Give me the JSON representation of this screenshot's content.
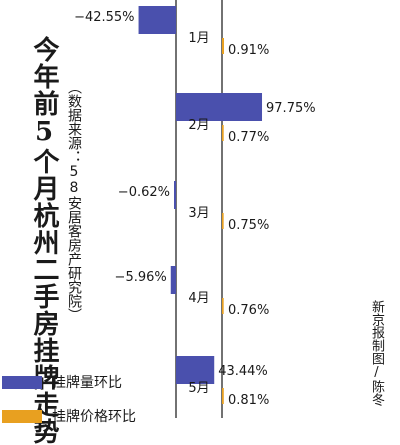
{
  "title": "今年前5个月杭州二手房挂牌走势",
  "source": "（数据来源：58安居客房产研究院）",
  "credit": "新京报制图/陈冬",
  "colors": {
    "volume": "#4a50ad",
    "price": "#e8a020",
    "axis": "#444444"
  },
  "chart_data": {
    "type": "bar",
    "categories": [
      "1月",
      "2月",
      "3月",
      "4月",
      "5月"
    ],
    "series": [
      {
        "name": "挂牌量环比",
        "values": [
          -42.55,
          97.75,
          -0.62,
          -5.96,
          43.44
        ],
        "labels": [
          "−42.55%",
          "97.75%",
          "−0.62%",
          "−5.96%",
          "43.44%"
        ]
      },
      {
        "name": "挂牌价格环比",
        "values": [
          0.91,
          0.77,
          0.75,
          0.76,
          0.81
        ],
        "labels": [
          "0.91%",
          "0.77%",
          "0.75%",
          "0.76%",
          "0.81%"
        ]
      }
    ],
    "legend_position": "bottom-left",
    "grid": false
  }
}
